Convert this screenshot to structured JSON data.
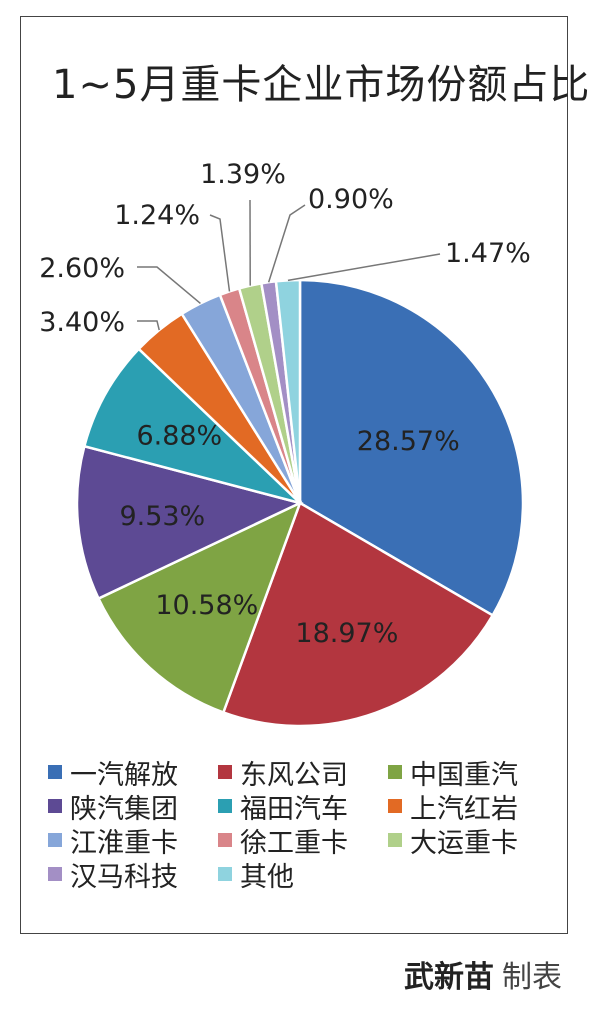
{
  "chart_data": {
    "type": "pie",
    "title": "1~5月重卡企业市场份额占比",
    "categories": [
      "一汽解放",
      "东风公司",
      "中国重汽",
      "陕汽集团",
      "福田汽车",
      "上汽红岩",
      "江淮重卡",
      "徐工重卡",
      "大运重卡",
      "汉马科技",
      "其他"
    ],
    "values": [
      28.57,
      18.97,
      10.58,
      9.53,
      6.88,
      3.4,
      2.6,
      1.24,
      1.39,
      0.9,
      1.47
    ],
    "labels": [
      "28.57%",
      "18.97%",
      "10.58%",
      "9.53%",
      "6.88%",
      "3.40%",
      "2.60%",
      "1.24%",
      "1.39%",
      "0.90%",
      "1.47%"
    ],
    "colors": [
      "#3a6fb5",
      "#b3363f",
      "#7fa444",
      "#5d4a94",
      "#2b9fb2",
      "#e26a24",
      "#86a6d9",
      "#d98589",
      "#b0d08a",
      "#a38fc5",
      "#8fd3df"
    ],
    "legend_position": "bottom"
  },
  "credit": {
    "author": "武新苗",
    "role": "制表"
  }
}
